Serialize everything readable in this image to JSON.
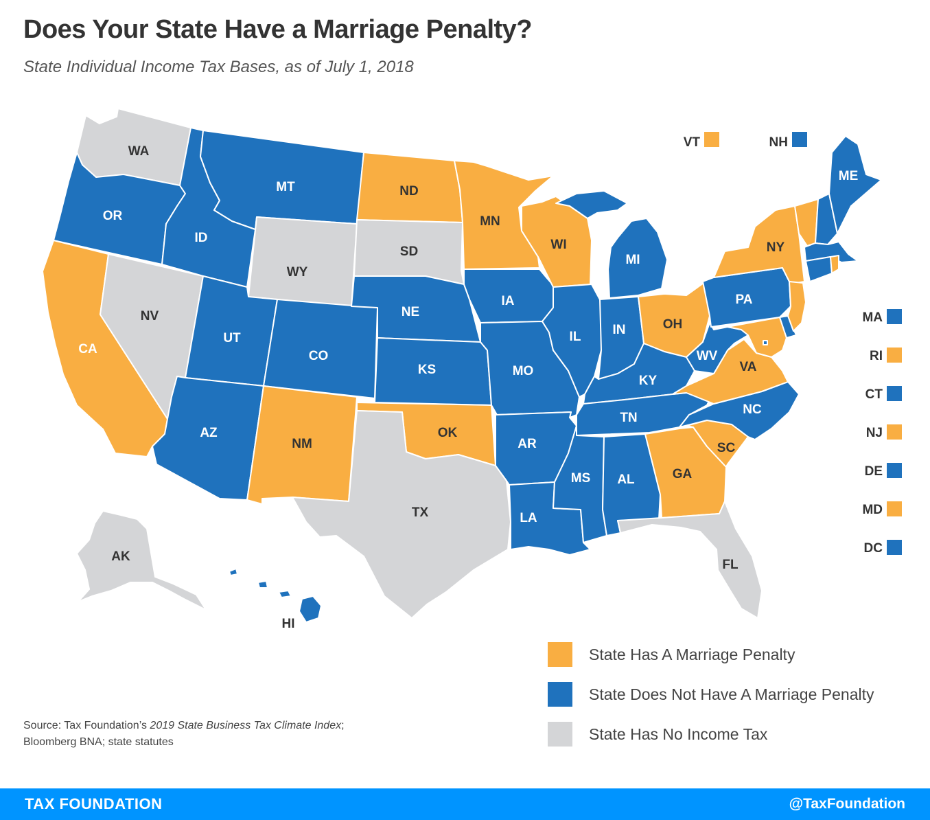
{
  "title": "Does Your State Have a Marriage Penalty?",
  "subtitle": "State Individual Income Tax Bases, as of July 1, 2018",
  "colors": {
    "penalty": "#f9ae42",
    "no_penalty": "#1f72bd",
    "no_income_tax": "#d4d5d7",
    "footer": "#0094ff"
  },
  "legend": [
    {
      "key": "penalty",
      "label": "State Has A Marriage Penalty"
    },
    {
      "key": "no_penalty",
      "label": "State Does Not Have A Marriage Penalty"
    },
    {
      "key": "no_income_tax",
      "label": "State Has No Income Tax"
    }
  ],
  "states": {
    "WA": "no_income_tax",
    "OR": "no_penalty",
    "CA": "penalty",
    "NV": "no_income_tax",
    "ID": "no_penalty",
    "MT": "no_penalty",
    "WY": "no_income_tax",
    "UT": "no_penalty",
    "AZ": "no_penalty",
    "CO": "no_penalty",
    "NM": "penalty",
    "ND": "penalty",
    "SD": "no_income_tax",
    "NE": "no_penalty",
    "KS": "no_penalty",
    "OK": "penalty",
    "TX": "no_income_tax",
    "MN": "penalty",
    "IA": "no_penalty",
    "MO": "no_penalty",
    "AR": "no_penalty",
    "LA": "no_penalty",
    "WI": "penalty",
    "IL": "no_penalty",
    "MI": "no_penalty",
    "IN": "no_penalty",
    "OH": "penalty",
    "KY": "no_penalty",
    "TN": "no_penalty",
    "MS": "no_penalty",
    "AL": "no_penalty",
    "GA": "penalty",
    "FL": "no_income_tax",
    "SC": "penalty",
    "NC": "no_penalty",
    "VA": "penalty",
    "WV": "no_penalty",
    "PA": "no_penalty",
    "NY": "penalty",
    "ME": "no_penalty",
    "VT": "penalty",
    "NH": "no_penalty",
    "MA": "no_penalty",
    "RI": "penalty",
    "CT": "no_penalty",
    "NJ": "penalty",
    "DE": "no_penalty",
    "MD": "penalty",
    "DC": "no_penalty",
    "AK": "no_income_tax",
    "HI": "no_penalty"
  },
  "side_keys": {
    "top": [
      "VT",
      "NH"
    ],
    "right": [
      "MA",
      "RI",
      "CT",
      "NJ",
      "DE",
      "MD",
      "DC"
    ]
  },
  "source": {
    "prefix": "Source: Tax Foundation’s ",
    "italic": "2019 State Business Tax Climate Index",
    "suffix": ";",
    "line2": "Bloomberg BNA; state statutes"
  },
  "footer": {
    "brand": "TAX FOUNDATION",
    "handle": "@TaxFoundation"
  }
}
